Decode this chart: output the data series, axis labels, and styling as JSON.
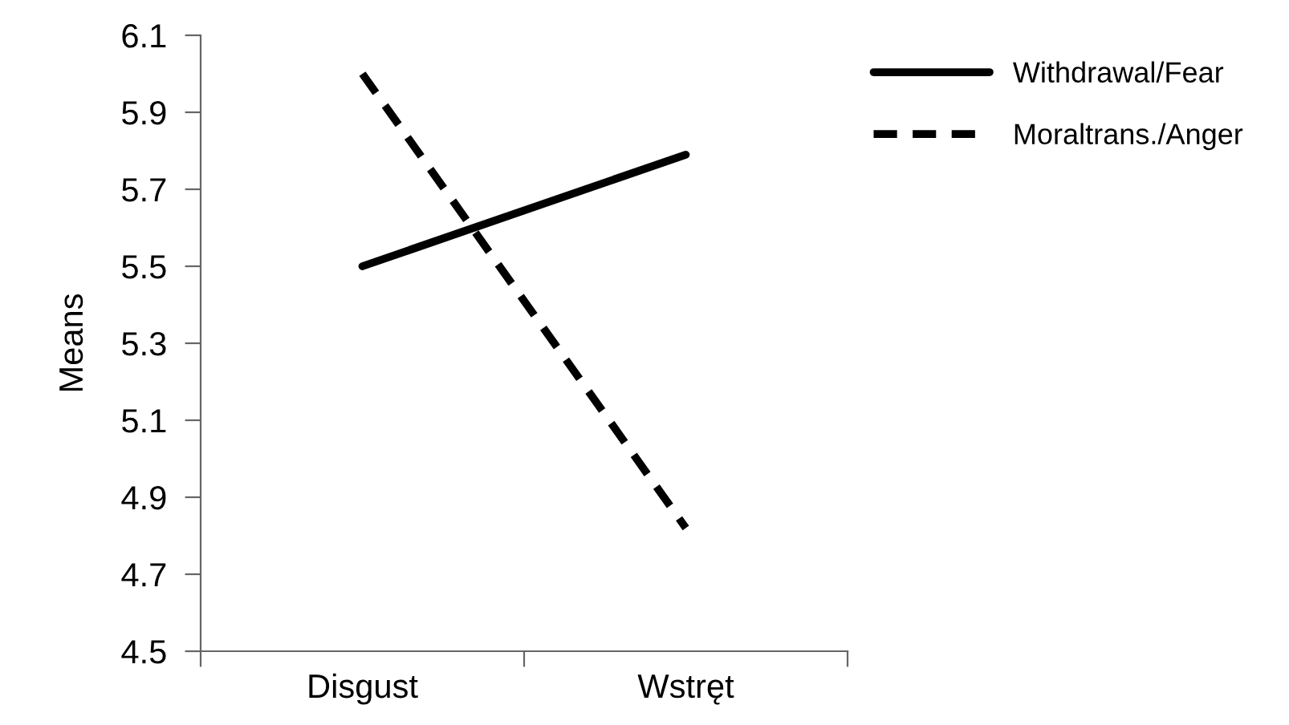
{
  "chart_data": {
    "type": "line",
    "ylabel": "Means",
    "categories": [
      "Disgust",
      "Wstręt"
    ],
    "series": [
      {
        "name": "Withdrawal/Fear",
        "color": "#000000",
        "values": [
          5.5,
          5.79
        ],
        "line_style": "solid"
      },
      {
        "name": "Moraltrans./Anger",
        "color": "#000000",
        "values": [
          6.0,
          4.82
        ],
        "line_style": "dashed"
      }
    ],
    "ylim": [
      4.5,
      6.1
    ],
    "yticks": [
      4.5,
      4.7,
      4.9,
      5.1,
      5.3,
      5.5,
      5.7,
      5.9,
      6.1
    ],
    "grid": false,
    "legend": "top right",
    "marker": "none"
  }
}
